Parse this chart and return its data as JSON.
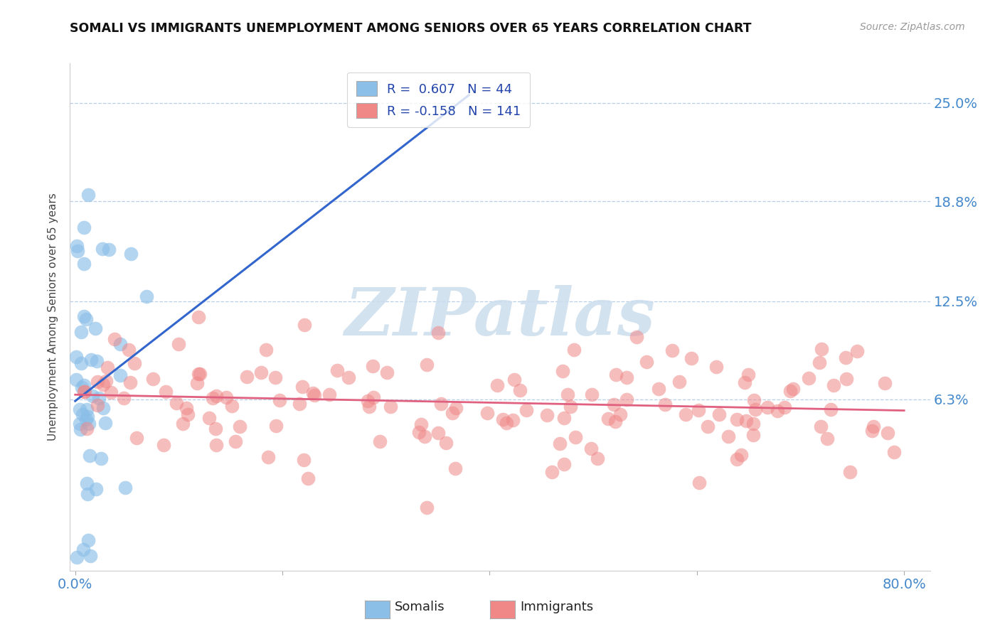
{
  "title": "SOMALI VS IMMIGRANTS UNEMPLOYMENT AMONG SENIORS OVER 65 YEARS CORRELATION CHART",
  "source": "Source: ZipAtlas.com",
  "ylabel": "Unemployment Among Seniors over 65 years",
  "ytick_labels": [
    "6.3%",
    "12.5%",
    "18.8%",
    "25.0%"
  ],
  "ytick_values": [
    0.063,
    0.125,
    0.188,
    0.25
  ],
  "xlim": [
    -0.005,
    0.825
  ],
  "ylim": [
    -0.045,
    0.275
  ],
  "somali_R": 0.607,
  "somali_N": 44,
  "immigrants_R": -0.158,
  "immigrants_N": 141,
  "somali_color": "#8bbfe8",
  "immigrants_color": "#f08888",
  "somali_line_color": "#3366cc",
  "immigrants_line_color": "#e06080",
  "somali_line_x0": 0.0,
  "somali_line_x1": 0.38,
  "somali_line_y0": 0.062,
  "somali_line_y1": 0.255,
  "immigrants_line_x0": 0.0,
  "immigrants_line_x1": 0.8,
  "immigrants_line_y0": 0.066,
  "immigrants_line_y1": 0.056,
  "watermark_text": "ZIPatlas",
  "watermark_color": "#ccdded",
  "legend_R1": "R =  0.607",
  "legend_N1": "N = 44",
  "legend_R2": "R = -0.158",
  "legend_N2": "N = 141",
  "bottom_legend_somalis": "Somalis",
  "bottom_legend_immigrants": "Immigrants"
}
